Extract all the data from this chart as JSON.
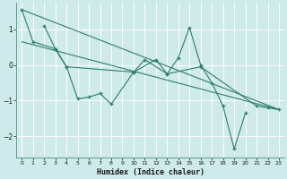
{
  "xlabel": "Humidex (Indice chaleur)",
  "x": [
    0,
    1,
    2,
    3,
    4,
    5,
    6,
    7,
    8,
    9,
    10,
    11,
    12,
    13,
    14,
    15,
    16,
    17,
    18,
    19,
    20,
    21,
    22,
    23
  ],
  "line1_y": [
    1.55,
    0.65,
    null,
    0.45,
    -0.05,
    null,
    null,
    null,
    null,
    null,
    -0.2,
    null,
    0.15,
    -0.25,
    null,
    null,
    -0.05,
    null,
    null,
    null,
    null,
    -1.15,
    -1.2,
    -1.25
  ],
  "line2_y": [
    null,
    null,
    1.1,
    0.45,
    -0.05,
    -0.95,
    -0.9,
    -0.8,
    -1.1,
    null,
    -0.2,
    0.15,
    null,
    -0.25,
    0.2,
    1.05,
    0.0,
    -0.5,
    -1.15,
    -2.35,
    -1.35,
    null,
    null,
    null
  ],
  "trend1_x": [
    0,
    23
  ],
  "trend1_y": [
    1.55,
    -1.25
  ],
  "trend2_x": [
    0,
    23
  ],
  "trend2_y": [
    0.65,
    -1.25
  ],
  "ylim": [
    -2.6,
    1.75
  ],
  "xlim": [
    -0.5,
    23.5
  ],
  "yticks": [
    -2,
    -1,
    0,
    1
  ],
  "xticks": [
    0,
    1,
    2,
    3,
    4,
    5,
    6,
    7,
    8,
    9,
    10,
    11,
    12,
    13,
    14,
    15,
    16,
    17,
    18,
    19,
    20,
    21,
    22,
    23
  ],
  "line_color": "#2e7d6e",
  "bg_color": "#ceeaea",
  "grid_color": "#b8d8d8",
  "spine_color": "#4a9080"
}
